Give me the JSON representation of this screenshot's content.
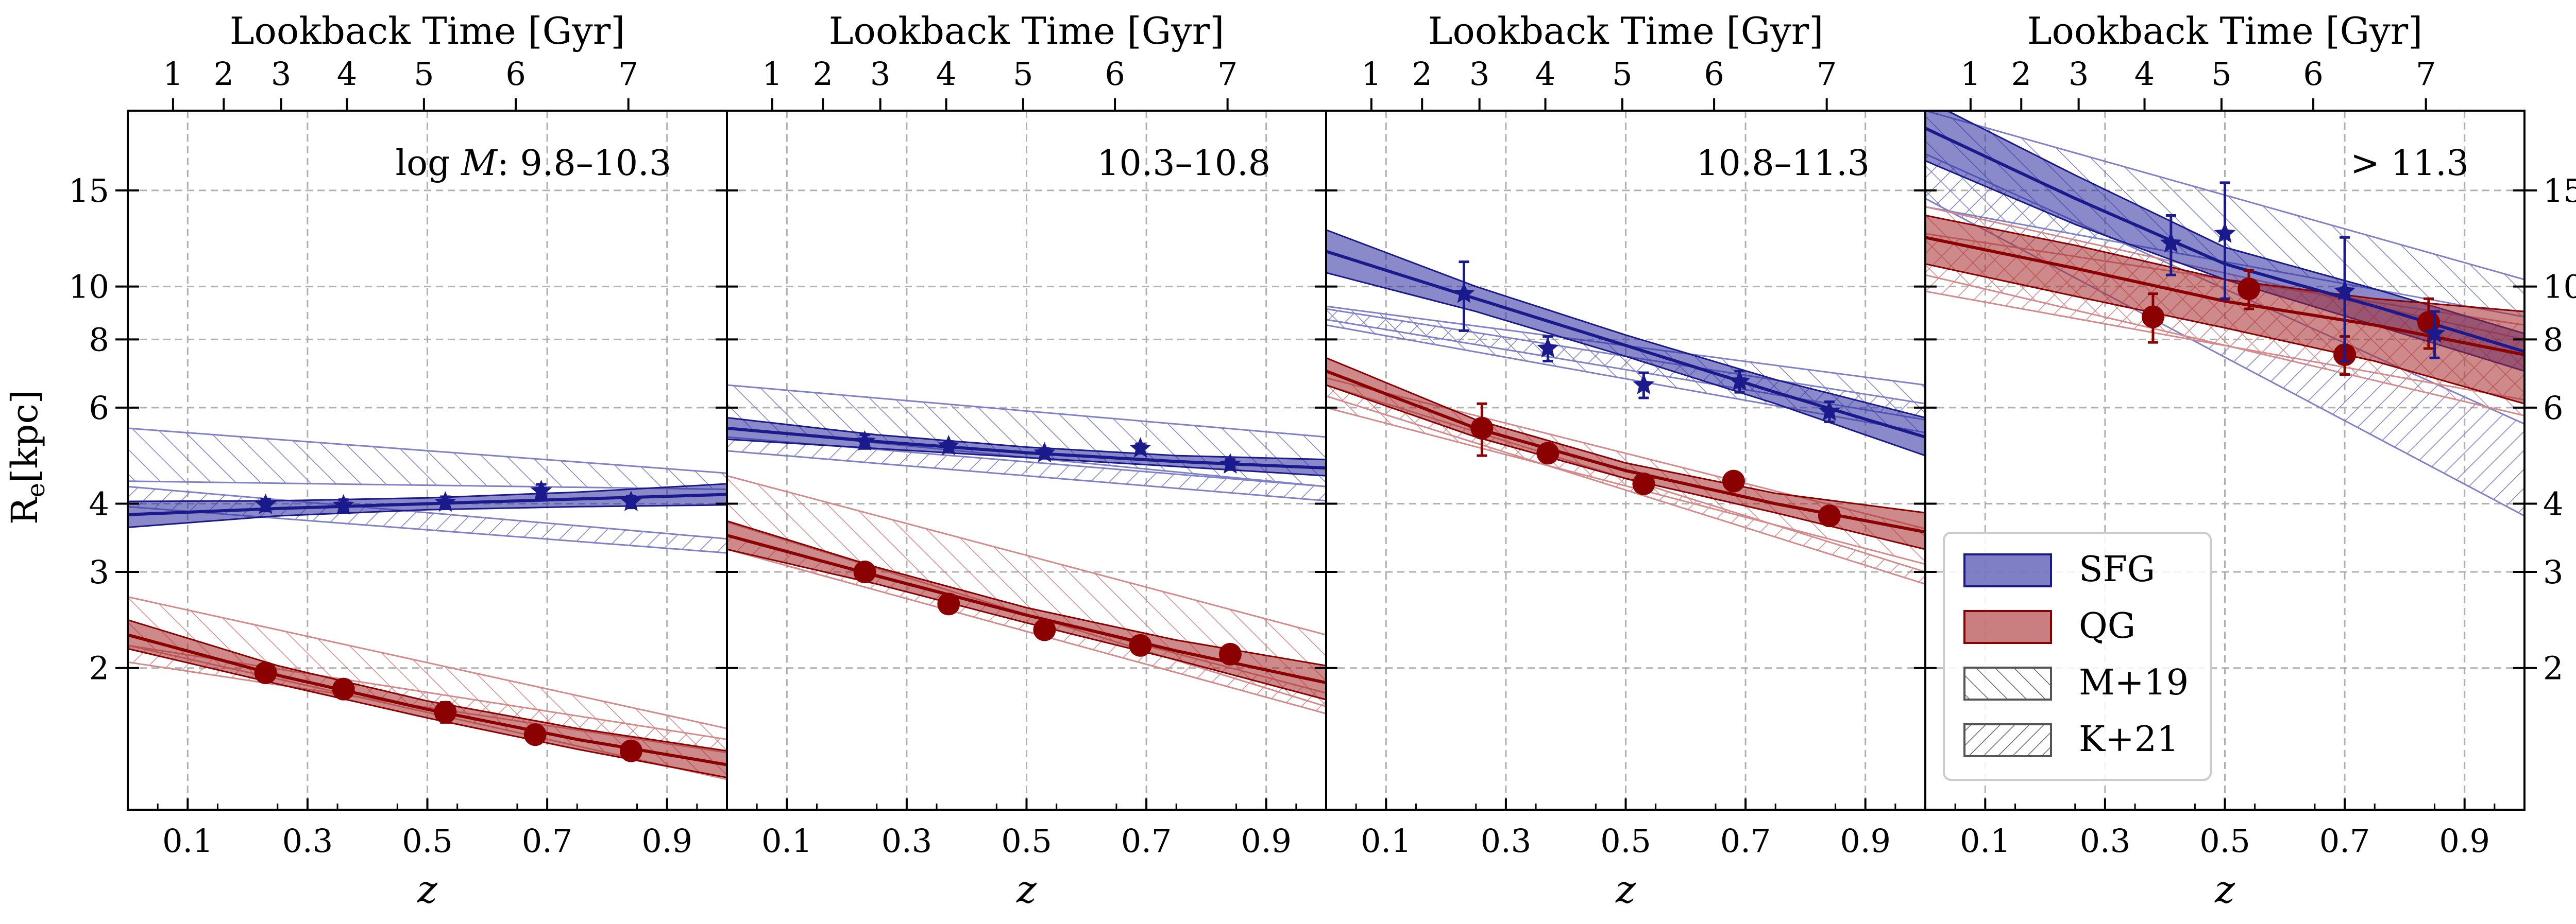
{
  "figure": {
    "ylabel_main": "R",
    "ylabel_sub": "e",
    "ylabel_unit": "[kpc]",
    "xlabel": "z",
    "top_axis_label": "Lookback Time [Gyr]"
  },
  "colors": {
    "sfg": "#1a1a8c",
    "sfg_fill": "#2a2a9e",
    "qg": "#8b0000",
    "qg_fill": "#a52a2a",
    "m19_sfg": "#8080c8",
    "m19_qg": "#d48a8a",
    "grid": "#b0b0b0"
  },
  "legend": {
    "items": [
      {
        "label": "SFG",
        "kind": "sfg"
      },
      {
        "label": "QG",
        "kind": "qg"
      },
      {
        "label": "M+19",
        "kind": "m19"
      },
      {
        "label": "K+21",
        "kind": "k21"
      }
    ]
  },
  "chart_data": [
    {
      "type": "line",
      "panel_label": "log M : 9.8–10.3",
      "panel_label_parts": {
        "prefix": "log ",
        "var": "M",
        "range": ": 9.8–10.3"
      },
      "xlabel": "z",
      "ylabel": "Re [kpc]",
      "xlim": [
        0.0,
        1.0
      ],
      "ylim": [
        1.1,
        21
      ],
      "yscale": "log",
      "xticks": [
        0.1,
        0.3,
        0.5,
        0.7,
        0.9
      ],
      "yticks": [
        2,
        3,
        4,
        6,
        8,
        10,
        15
      ],
      "top_ticks_gyr": [
        1,
        2,
        3,
        4,
        5,
        6,
        7
      ],
      "grid": true,
      "sfg_fit": {
        "z": [
          0.0,
          0.25,
          0.5,
          0.75,
          1.0
        ],
        "re": [
          3.82,
          3.92,
          4.0,
          4.08,
          4.16
        ],
        "re_lo": [
          3.62,
          3.8,
          3.9,
          3.95,
          3.98
        ],
        "re_hi": [
          4.04,
          4.05,
          4.1,
          4.2,
          4.35
        ]
      },
      "sfg_points": {
        "z": [
          0.23,
          0.36,
          0.53,
          0.69,
          0.84
        ],
        "re": [
          3.98,
          3.97,
          4.02,
          4.22,
          4.03
        ],
        "err": [
          0.1,
          0.1,
          0.1,
          0.12,
          0.1
        ]
      },
      "qg_fit": {
        "z": [
          0.0,
          0.25,
          0.5,
          0.75,
          1.0
        ],
        "re": [
          2.3,
          1.94,
          1.68,
          1.48,
          1.33
        ],
        "re_lo": [
          2.17,
          1.87,
          1.62,
          1.42,
          1.26
        ],
        "re_hi": [
          2.45,
          2.02,
          1.74,
          1.55,
          1.41
        ]
      },
      "qg_points": {
        "z": [
          0.23,
          0.36,
          0.53,
          0.68,
          0.84
        ],
        "re": [
          1.96,
          1.83,
          1.66,
          1.51,
          1.41
        ],
        "err": [
          0.04,
          0.04,
          0.07,
          0.04,
          0.04
        ]
      },
      "m19_sfg": {
        "z": [
          0.0,
          1.0
        ],
        "lo": [
          4.4,
          4.25
        ],
        "hi": [
          5.5,
          4.55
        ]
      },
      "k21_sfg": {
        "z": [
          0.0,
          1.0
        ],
        "lo": [
          3.95,
          3.25
        ],
        "hi": [
          4.3,
          3.45
        ]
      },
      "m19_qg": {
        "z": [
          0.0,
          1.0
        ],
        "lo": [
          2.2,
          1.25
        ],
        "hi": [
          2.7,
          1.55
        ]
      },
      "k21_qg": {
        "z": [
          0.0,
          1.0
        ],
        "lo": [
          2.05,
          1.4
        ],
        "hi": [
          2.2,
          1.48
        ]
      }
    },
    {
      "type": "line",
      "panel_label": "10.3–10.8",
      "xlabel": "z",
      "xlim": [
        0.0,
        1.0
      ],
      "ylim": [
        1.1,
        21
      ],
      "yscale": "log",
      "xticks": [
        0.1,
        0.3,
        0.5,
        0.7,
        0.9
      ],
      "top_ticks_gyr": [
        1,
        2,
        3,
        4,
        5,
        6,
        7
      ],
      "grid": true,
      "sfg_fit": {
        "z": [
          0.0,
          0.25,
          0.5,
          0.75,
          1.0
        ],
        "re": [
          5.5,
          5.2,
          4.96,
          4.78,
          4.65
        ],
        "re_lo": [
          5.25,
          5.05,
          4.86,
          4.68,
          4.5
        ],
        "re_hi": [
          5.75,
          5.35,
          5.08,
          4.9,
          4.82
        ]
      },
      "sfg_points": {
        "z": [
          0.23,
          0.37,
          0.53,
          0.69,
          0.84
        ],
        "re": [
          5.2,
          5.1,
          4.95,
          5.05,
          4.72
        ],
        "err": [
          0.15,
          0.1,
          0.1,
          0.1,
          0.1
        ]
      },
      "qg_fit": {
        "z": [
          0.0,
          0.25,
          0.5,
          0.75,
          1.0
        ],
        "re": [
          3.5,
          2.95,
          2.5,
          2.15,
          1.88
        ],
        "re_lo": [
          3.3,
          2.85,
          2.42,
          2.07,
          1.75
        ],
        "re_hi": [
          3.72,
          3.06,
          2.58,
          2.25,
          2.02
        ]
      },
      "qg_points": {
        "z": [
          0.23,
          0.37,
          0.53,
          0.69,
          0.84
        ],
        "re": [
          3.0,
          2.62,
          2.35,
          2.2,
          2.12
        ],
        "err": [
          0.1,
          0.06,
          0.06,
          0.06,
          0.06
        ]
      },
      "m19_sfg": {
        "z": [
          0.0,
          1.0
        ],
        "lo": [
          5.5,
          4.3
        ],
        "hi": [
          6.6,
          5.3
        ]
      },
      "k21_sfg": {
        "z": [
          0.0,
          1.0
        ],
        "lo": [
          5.0,
          4.05
        ],
        "hi": [
          5.3,
          4.3
        ]
      },
      "m19_qg": {
        "z": [
          0.0,
          1.0
        ],
        "lo": [
          3.7,
          1.7
        ],
        "hi": [
          4.5,
          2.3
        ]
      },
      "k21_qg": {
        "z": [
          0.0,
          1.0
        ],
        "lo": [
          3.3,
          1.65
        ],
        "hi": [
          3.5,
          1.8
        ]
      }
    },
    {
      "type": "line",
      "panel_label": "10.8–11.3",
      "xlabel": "z",
      "xlim": [
        0.0,
        1.0
      ],
      "ylim": [
        1.1,
        21
      ],
      "yscale": "log",
      "xticks": [
        0.1,
        0.3,
        0.5,
        0.7,
        0.9
      ],
      "top_ticks_gyr": [
        1,
        2,
        3,
        4,
        5,
        6,
        7
      ],
      "grid": true,
      "sfg_fit": {
        "z": [
          0.0,
          0.25,
          0.5,
          0.75,
          1.0
        ],
        "re": [
          11.6,
          9.5,
          7.8,
          6.4,
          5.3
        ],
        "re_lo": [
          10.6,
          9.0,
          7.45,
          6.1,
          4.9
        ],
        "re_hi": [
          12.7,
          10.0,
          8.15,
          6.75,
          5.75
        ]
      },
      "sfg_points": {
        "z": [
          0.23,
          0.37,
          0.53,
          0.69,
          0.84
        ],
        "re": [
          9.7,
          7.7,
          6.6,
          6.7,
          5.9
        ],
        "err": [
          1.4,
          0.4,
          0.35,
          0.3,
          0.25
        ]
      },
      "qg_fit": {
        "z": [
          0.0,
          0.25,
          0.5,
          0.75,
          1.0
        ],
        "re": [
          7.0,
          5.5,
          4.6,
          4.0,
          3.55
        ],
        "re_lo": [
          6.6,
          5.3,
          4.45,
          3.85,
          3.3
        ],
        "re_hi": [
          7.4,
          5.7,
          4.75,
          4.18,
          3.85
        ]
      },
      "qg_points": {
        "z": [
          0.26,
          0.37,
          0.53,
          0.68,
          0.84
        ],
        "re": [
          5.5,
          4.95,
          4.35,
          4.4,
          3.8
        ],
        "err": [
          0.6,
          0.15,
          0.15,
          0.15,
          0.12
        ]
      },
      "m19_sfg": {
        "z": [
          0.0,
          1.0
        ],
        "lo": [
          8.5,
          5.4
        ],
        "hi": [
          9.2,
          6.6
        ]
      },
      "k21_sfg": {
        "z": [
          0.0,
          1.0
        ],
        "lo": [
          8.7,
          5.7
        ],
        "hi": [
          9.1,
          6.1
        ]
      },
      "m19_qg": {
        "z": [
          0.0,
          1.0
        ],
        "lo": [
          6.0,
          3.1
        ],
        "hi": [
          6.8,
          3.6
        ]
      },
      "k21_qg": {
        "z": [
          0.0,
          1.0
        ],
        "lo": [
          6.3,
          2.85
        ],
        "hi": [
          6.6,
          3.0
        ]
      }
    },
    {
      "type": "line",
      "panel_label": "> 11.3",
      "xlabel": "z",
      "xlim": [
        0.0,
        1.0
      ],
      "ylim": [
        1.1,
        21
      ],
      "yscale": "log",
      "xticks": [
        0.1,
        0.3,
        0.5,
        0.7,
        0.9
      ],
      "yticks_right": [
        2,
        3,
        4,
        6,
        8,
        10,
        15
      ],
      "top_ticks_gyr": [
        1,
        2,
        3,
        4,
        5,
        6,
        7
      ],
      "grid": true,
      "sfg_fit": {
        "z": [
          0.0,
          0.25,
          0.5,
          0.75,
          1.0
        ],
        "re": [
          19.5,
          14.5,
          11.0,
          9.2,
          7.6
        ],
        "re_lo": [
          17.0,
          13.0,
          10.3,
          8.5,
          7.0
        ],
        "re_hi": [
          22.0,
          16.0,
          11.8,
          9.9,
          8.2
        ]
      },
      "sfg_points": {
        "z": [
          0.41,
          0.5,
          0.7,
          0.85
        ],
        "re": [
          12.0,
          12.5,
          9.8,
          8.2
        ],
        "err": [
          1.5,
          3.0,
          2.5,
          0.8
        ]
      },
      "qg_fit": {
        "z": [
          0.0,
          0.25,
          0.5,
          0.75,
          1.0
        ],
        "re": [
          12.3,
          10.8,
          9.4,
          8.5,
          7.5
        ],
        "re_lo": [
          11.0,
          9.6,
          8.4,
          7.3,
          6.1
        ],
        "re_hi": [
          13.5,
          11.9,
          10.3,
          9.5,
          9.0
        ]
      },
      "qg_points": {
        "z": [
          0.38,
          0.54,
          0.7,
          0.84
        ],
        "re": [
          8.8,
          9.9,
          7.5,
          8.6
        ],
        "err": [
          0.9,
          0.8,
          0.6,
          0.9
        ]
      },
      "m19_sfg": {
        "z": [
          0.0,
          1.0
        ],
        "lo": [
          14.0,
          8.8
        ],
        "hi": [
          21.0,
          10.3
        ]
      },
      "k21_sfg": {
        "z": [
          0.0,
          1.0
        ],
        "lo": [
          14.5,
          3.8
        ],
        "hi": [
          17.5,
          5.6
        ]
      },
      "m19_qg": {
        "z": [
          0.0,
          1.0
        ],
        "lo": [
          10.5,
          5.8
        ],
        "hi": [
          14.0,
          8.0
        ]
      },
      "k21_qg": {
        "z": [
          0.0,
          1.0
        ],
        "lo": [
          9.8,
          6.2
        ],
        "hi": [
          12.5,
          8.5
        ]
      }
    }
  ]
}
